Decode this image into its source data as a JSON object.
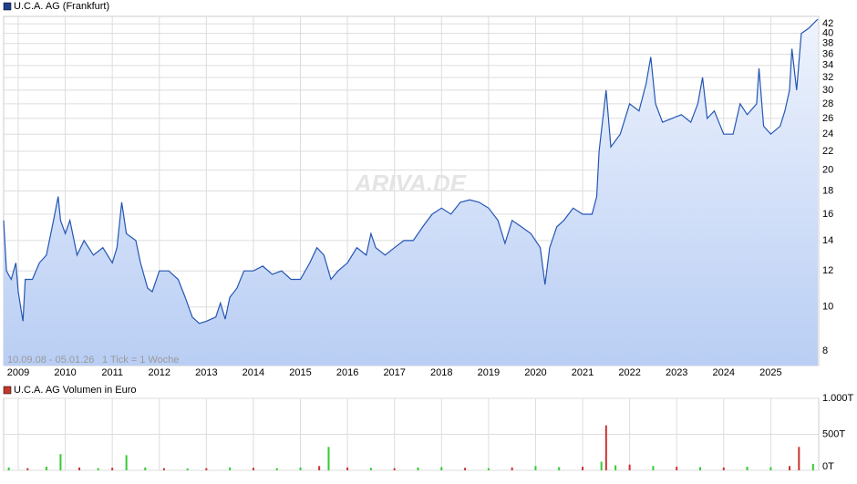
{
  "charts": [
    {
      "type": "line",
      "title": "U.C.A. AG (Frankfurt)",
      "color": "#2456b4",
      "legend_color": "#1f3f8f",
      "watermark": "ARIVA.DE",
      "range_text": "10.09.08 - 05.01.26",
      "tick_text": "1 Tick = 1 Woche",
      "log_scale": true,
      "grid": true,
      "xlim": [
        2008.69,
        2026.02
      ],
      "xticks": [
        2009,
        2010,
        2011,
        2012,
        2013,
        2014,
        2015,
        2016,
        2017,
        2018,
        2019,
        2020,
        2021,
        2022,
        2023,
        2024,
        2025
      ],
      "ylim": [
        7.43,
        43.6
      ],
      "yticks": [
        8,
        10,
        12,
        14,
        16,
        18,
        20,
        22,
        24,
        26,
        28,
        30,
        32,
        34,
        36,
        38,
        40,
        42
      ],
      "x": [
        2008.69,
        2008.75,
        2008.85,
        2008.95,
        2009.0,
        2009.05,
        2009.1,
        2009.15,
        2009.3,
        2009.45,
        2009.6,
        2009.75,
        2009.85,
        2009.9,
        2010.0,
        2010.1,
        2010.25,
        2010.4,
        2010.6,
        2010.8,
        2011.0,
        2011.1,
        2011.2,
        2011.3,
        2011.5,
        2011.6,
        2011.75,
        2011.85,
        2012.0,
        2012.2,
        2012.4,
        2012.55,
        2012.7,
        2012.85,
        2013.0,
        2013.2,
        2013.3,
        2013.4,
        2013.5,
        2013.65,
        2013.8,
        2014.0,
        2014.2,
        2014.4,
        2014.6,
        2014.8,
        2015.0,
        2015.2,
        2015.35,
        2015.5,
        2015.65,
        2015.8,
        2016.0,
        2016.2,
        2016.4,
        2016.5,
        2016.6,
        2016.8,
        2017.0,
        2017.2,
        2017.4,
        2017.6,
        2017.8,
        2018.0,
        2018.2,
        2018.4,
        2018.6,
        2018.8,
        2019.0,
        2019.2,
        2019.35,
        2019.5,
        2019.7,
        2019.9,
        2020.1,
        2020.2,
        2020.3,
        2020.45,
        2020.6,
        2020.8,
        2021.0,
        2021.2,
        2021.3,
        2021.35,
        2021.45,
        2021.5,
        2021.6,
        2021.8,
        2022.0,
        2022.2,
        2022.35,
        2022.45,
        2022.55,
        2022.7,
        2022.9,
        2023.1,
        2023.3,
        2023.45,
        2023.55,
        2023.65,
        2023.8,
        2024.0,
        2024.2,
        2024.35,
        2024.5,
        2024.7,
        2024.75,
        2024.85,
        2025.0,
        2025.2,
        2025.3,
        2025.4,
        2025.45,
        2025.55,
        2025.65,
        2025.8,
        2026.0
      ],
      "values": [
        15.5,
        12,
        11.5,
        12.5,
        10.8,
        10,
        9.3,
        11.5,
        11.5,
        12.5,
        13,
        15.5,
        17.5,
        15.5,
        14.5,
        15.5,
        13,
        14,
        13,
        13.5,
        12.5,
        13.5,
        17,
        14.5,
        14,
        12.5,
        11,
        10.8,
        12,
        12,
        11.5,
        10.5,
        9.5,
        9.2,
        9.3,
        9.5,
        10.2,
        9.4,
        10.5,
        11,
        12,
        12,
        12.3,
        11.8,
        12,
        11.5,
        11.5,
        12.5,
        13.5,
        13,
        11.5,
        12,
        12.5,
        13.5,
        13,
        14.5,
        13.5,
        13,
        13.5,
        14,
        14,
        15,
        16,
        16.5,
        16,
        17,
        17.2,
        17,
        16.5,
        15.5,
        13.8,
        15.5,
        15,
        14.5,
        13.5,
        11.2,
        13.5,
        15,
        15.5,
        16.5,
        16,
        16,
        17.5,
        22,
        27,
        30,
        22.5,
        24,
        28,
        27,
        31,
        35.5,
        28,
        25.5,
        26,
        26.5,
        25.5,
        28,
        32,
        26,
        27,
        24,
        24,
        28,
        26.5,
        28,
        33.5,
        25,
        24,
        25,
        27,
        30,
        37,
        30,
        40,
        41,
        43
      ]
    },
    {
      "type": "bar",
      "title": "U.C.A. AG Volumen in Euro",
      "legend_color": "#c0392b",
      "xlim": [
        2008.69,
        2026.02
      ],
      "ylim": [
        0,
        1000
      ],
      "yticks": [
        {
          "value": 0,
          "label": "0T"
        },
        {
          "value": 500,
          "label": "500T"
        },
        {
          "value": 1000,
          "label": "1.000T"
        }
      ],
      "x": [
        2008.8,
        2009.2,
        2009.6,
        2009.9,
        2010.3,
        2010.7,
        2011.0,
        2011.3,
        2011.7,
        2012.1,
        2012.6,
        2013.0,
        2013.5,
        2014.0,
        2014.5,
        2015.0,
        2015.4,
        2015.6,
        2016.0,
        2016.5,
        2017.0,
        2017.5,
        2018.0,
        2018.5,
        2019.0,
        2019.5,
        2020.0,
        2020.5,
        2021.0,
        2021.4,
        2021.5,
        2021.7,
        2022.0,
        2022.5,
        2023.0,
        2023.5,
        2024.0,
        2024.5,
        2025.0,
        2025.4,
        2025.6,
        2025.9
      ],
      "values": [
        40,
        30,
        50,
        225,
        40,
        30,
        35,
        210,
        40,
        30,
        25,
        30,
        40,
        35,
        30,
        40,
        60,
        325,
        40,
        35,
        30,
        40,
        45,
        35,
        30,
        40,
        60,
        45,
        50,
        120,
        625,
        70,
        80,
        60,
        50,
        45,
        40,
        50,
        45,
        60,
        325,
        90
      ],
      "colors": [
        "#3c3",
        "#c33",
        "#3c3",
        "#3c3",
        "#c33",
        "#3c3",
        "#c33",
        "#3c3",
        "#3c3",
        "#c33",
        "#3c3",
        "#c33",
        "#3c3",
        "#c33",
        "#3c3",
        "#3c3",
        "#c33",
        "#3c3",
        "#c33",
        "#3c3",
        "#c33",
        "#3c3",
        "#3c3",
        "#c33",
        "#3c3",
        "#c33",
        "#3c3",
        "#3c3",
        "#c33",
        "#3c3",
        "#c33",
        "#3c3",
        "#c33",
        "#3c3",
        "#c33",
        "#3c3",
        "#c33",
        "#3c3",
        "#3c3",
        "#c33",
        "#c33",
        "#3c3"
      ]
    }
  ]
}
